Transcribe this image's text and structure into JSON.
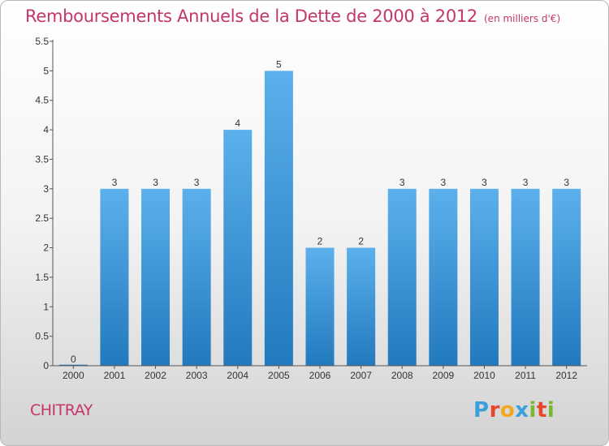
{
  "header": {
    "title": "Remboursements Annuels de la Dette de 2000 à 2012",
    "unit": "(en milliers d'€)"
  },
  "footer": {
    "commune": "CHITRAY",
    "logo_letters": [
      "P",
      "r",
      "o",
      "x",
      "i",
      "t",
      "i"
    ],
    "logo_colors": [
      "#3aa0dc",
      "#e8452c",
      "#f2a81d",
      "#3aa0dc",
      "#7ab833",
      "#e8452c",
      "#7ab833"
    ]
  },
  "colors": {
    "bar_top": "#5cb0ec",
    "bar_bottom": "#2279bd",
    "title": "#c4366b"
  },
  "chart_data": {
    "type": "bar",
    "categories": [
      "2000",
      "2001",
      "2002",
      "2003",
      "2004",
      "2005",
      "2006",
      "2007",
      "2008",
      "2009",
      "2010",
      "2011",
      "2012"
    ],
    "values": [
      0,
      3,
      3,
      3,
      4,
      5,
      2,
      2,
      3,
      3,
      3,
      3,
      3
    ],
    "data_labels": [
      "0",
      "3",
      "3",
      "3",
      "4",
      "5",
      "2",
      "2",
      "3",
      "3",
      "3",
      "3",
      "3"
    ],
    "yticks": [
      "0",
      "0.5",
      "1",
      "1.5",
      "2",
      "2.5",
      "3",
      "3.5",
      "4",
      "4.5",
      "5",
      "5.5"
    ],
    "ylim": [
      0,
      5.5
    ],
    "grid": false,
    "legend": false
  }
}
